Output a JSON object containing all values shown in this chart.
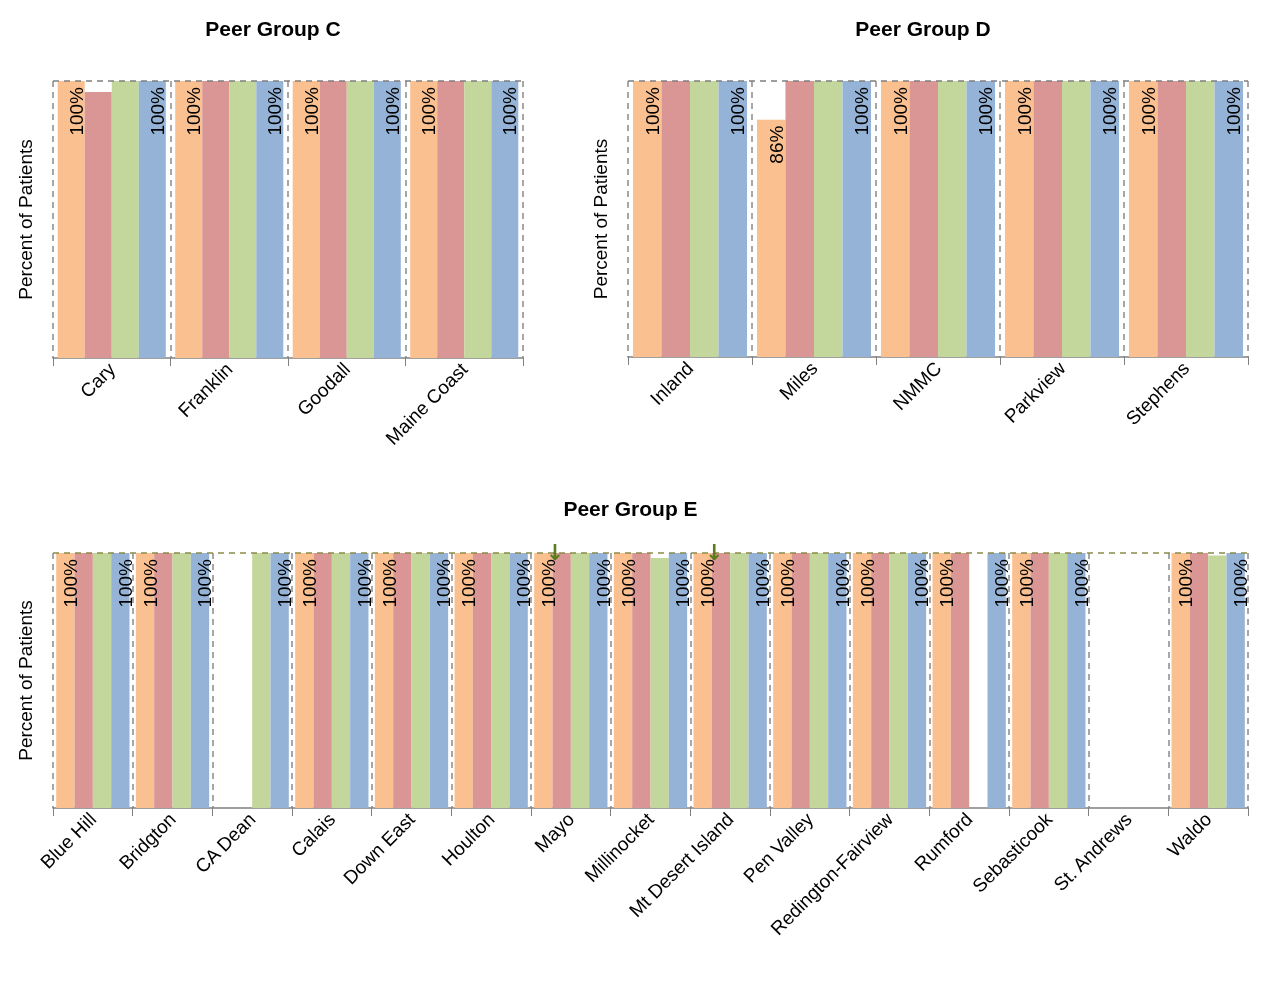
{
  "chart_data": [
    {
      "type": "bar",
      "title": "Peer Group C",
      "ylabel": "Percent of Patients",
      "categories": [
        "Cary",
        "Franklin",
        "Goodall",
        "Maine Coast"
      ],
      "ylim": [
        0,
        100
      ],
      "tick_labels": "x",
      "grid": "x",
      "series": [
        {
          "color": "#fac090",
          "values": [
            100,
            100,
            100,
            100
          ],
          "value_labels": [
            "100%",
            "100%",
            "100%",
            "100%"
          ]
        },
        {
          "color": "#d99694",
          "values": [
            96,
            100,
            100,
            100
          ]
        },
        {
          "color": "#c3d69b",
          "values": [
            100,
            100,
            100,
            100
          ]
        },
        {
          "color": "#95b3d7",
          "values": [
            100,
            100,
            100,
            100
          ],
          "value_labels": [
            "100%",
            "100%",
            "100%",
            "100%"
          ]
        }
      ],
      "ref_lines": [
        {
          "axis": "y",
          "value": 100,
          "color": "#7f7f7f",
          "line_style": "dashed"
        }
      ]
    },
    {
      "type": "bar",
      "title": "Peer Group D",
      "ylabel": "Percent of Patients",
      "categories": [
        "Inland",
        "Miles",
        "NMMC",
        "Parkview",
        "Stephens"
      ],
      "ylim": [
        0,
        100
      ],
      "tick_labels": "x",
      "grid": "x",
      "series": [
        {
          "color": "#fac090",
          "values": [
            100,
            86,
            100,
            100,
            100
          ],
          "value_labels": [
            "100%",
            "86%",
            "100%",
            "100%",
            "100%"
          ]
        },
        {
          "color": "#d99694",
          "values": [
            100,
            100,
            100,
            100,
            100
          ]
        },
        {
          "color": "#c3d69b",
          "values": [
            100,
            100,
            100,
            100,
            100
          ]
        },
        {
          "color": "#95b3d7",
          "values": [
            100,
            100,
            100,
            100,
            100
          ],
          "value_labels": [
            "100%",
            "100%",
            "100%",
            "100%",
            "100%"
          ]
        }
      ],
      "ref_lines": [
        {
          "axis": "y",
          "value": 100,
          "color": "#7f7f7f",
          "line_style": "dashed"
        }
      ]
    },
    {
      "type": "bar",
      "title": "Peer Group E",
      "ylabel": "Percent of Patients",
      "categories": [
        "Blue Hill",
        "Bridgton",
        "CA Dean",
        "Calais",
        "Down East",
        "Houlton",
        "Mayo",
        "Millinocket",
        "Mt Desert Island",
        "Pen Valley",
        "Redington-Fairview",
        "Rumford",
        "Sebasticook",
        "St. Andrews",
        "Waldo"
      ],
      "ylim": [
        0,
        100
      ],
      "tick_labels": "x",
      "grid": "x",
      "series": [
        {
          "color": "#fac090",
          "values": [
            100,
            100,
            null,
            100,
            100,
            100,
            100,
            100,
            100,
            100,
            100,
            100,
            100,
            null,
            100
          ],
          "value_labels": [
            "100%",
            "100%",
            null,
            "100%",
            "100%",
            "100%",
            "100%",
            "100%",
            "100%",
            "100%",
            "100%",
            "100%",
            "100%",
            null,
            "100%"
          ]
        },
        {
          "color": "#d99694",
          "values": [
            100,
            100,
            null,
            100,
            100,
            100,
            100,
            100,
            100,
            100,
            100,
            100,
            100,
            null,
            100
          ]
        },
        {
          "color": "#c3d69b",
          "values": [
            100,
            100,
            100,
            100,
            100,
            100,
            100,
            98,
            100,
            100,
            100,
            null,
            100,
            null,
            99
          ]
        },
        {
          "color": "#95b3d7",
          "values": [
            100,
            100,
            100,
            100,
            100,
            100,
            100,
            100,
            100,
            100,
            100,
            100,
            100,
            null,
            100
          ],
          "value_labels": [
            "100%",
            "100%",
            "100%",
            "100%",
            "100%",
            "100%",
            "100%",
            "100%",
            "100%",
            "100%",
            "100%",
            "100%",
            "100%",
            null,
            "100%"
          ]
        }
      ],
      "ref_lines": [
        {
          "axis": "y",
          "value": 100,
          "color": "#8c8c4a",
          "line_style": "dashed"
        }
      ],
      "annotations": [
        {
          "text": "↓",
          "x": "Mayo",
          "y": 100
        },
        {
          "text": "↓",
          "x": "Mt Desert Island",
          "y": 100
        }
      ]
    }
  ]
}
